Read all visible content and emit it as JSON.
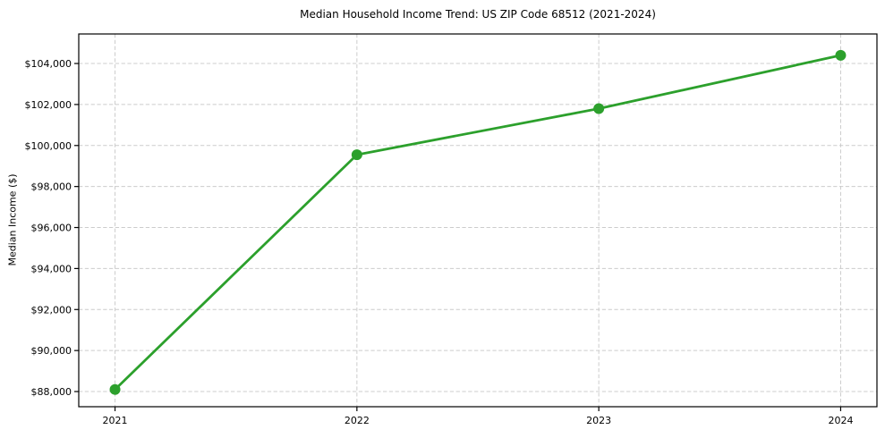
{
  "chart_data": {
    "type": "line",
    "title": "Median Household Income Trend: US ZIP Code 68512 (2021-2024)",
    "xlabel": "",
    "ylabel": "Median Income ($)",
    "x": [
      2021,
      2022,
      2023,
      2024
    ],
    "xticklabels": [
      "2021",
      "2022",
      "2023",
      "2024"
    ],
    "series": [
      {
        "name": "Median Household Income",
        "values": [
          88100,
          99550,
          101800,
          104400
        ]
      }
    ],
    "yticks": [
      88000,
      90000,
      92000,
      94000,
      96000,
      98000,
      100000,
      102000,
      104000
    ],
    "ytick_format": "$#,##0",
    "xlim": [
      2020.85,
      2024.15
    ],
    "ylim": [
      87260,
      105440
    ],
    "grid": true,
    "grid_style": "dashed",
    "legend": "none",
    "line_color": "#2ca02c",
    "marker": "circle",
    "grid_color": "#cccccc",
    "axis_color": "#000000",
    "text_color": "#000000",
    "background_color": "#ffffff"
  }
}
